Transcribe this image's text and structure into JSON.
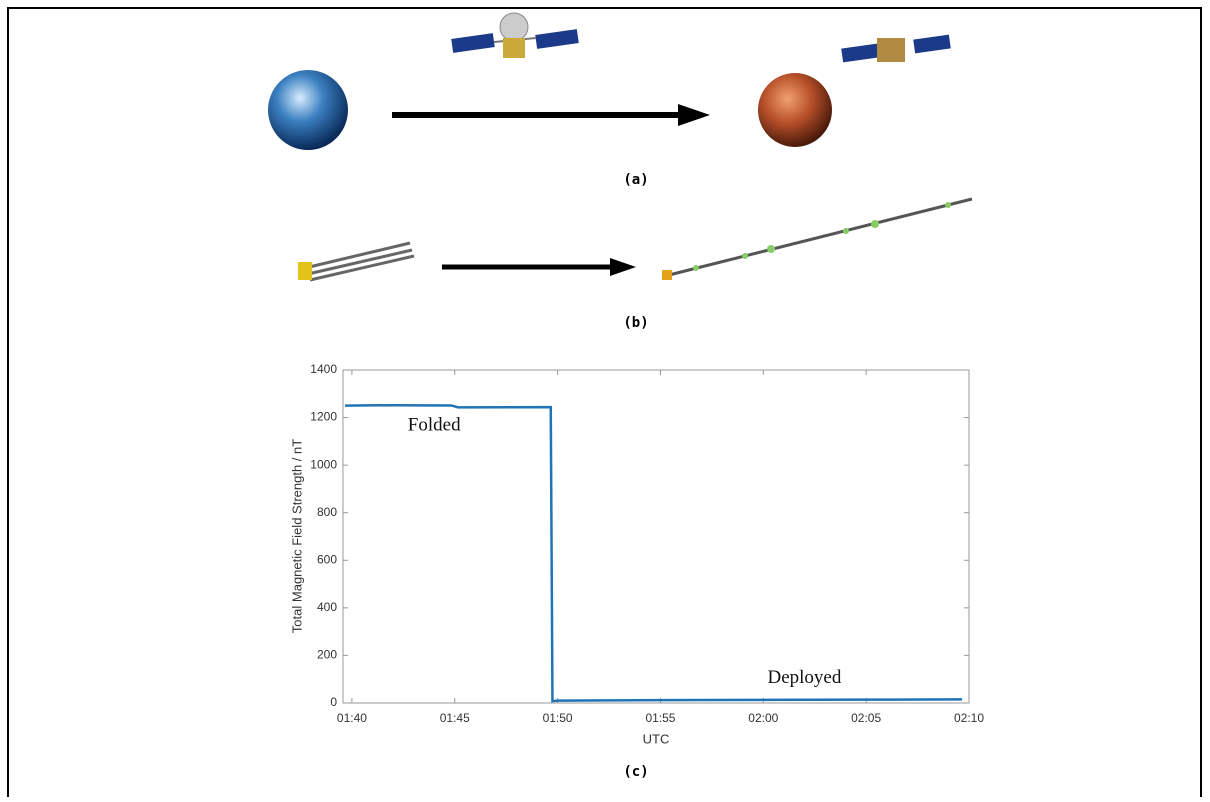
{
  "captions": {
    "a": "(a)",
    "b": "(b)",
    "c": "(c)"
  },
  "chart_data": {
    "type": "line",
    "y_label": "Total Magnetic Field Strength / nT",
    "x_label": "UTC",
    "annotations": [
      {
        "text": "Folded",
        "x": "01:44",
        "y": 1080
      },
      {
        "text": "Deployed",
        "x": "02:02",
        "y": 18
      }
    ],
    "x": [
      "01:39:40",
      "01:42:00",
      "01:44:50",
      "01:45:10",
      "01:49:40",
      "01:49:45",
      "01:50:00",
      "01:55:00",
      "02:00:00",
      "02:05:00",
      "02:09:40"
    ],
    "values": [
      1250,
      1252,
      1251,
      1243,
      1244,
      8,
      10,
      12,
      13,
      14,
      15
    ],
    "color": "#1f74b8",
    "xlim": [
      "01:39:34",
      "02:10:00"
    ],
    "xticks": [
      "01:40",
      "01:45",
      "01:50",
      "01:55",
      "02:00",
      "02:05",
      "02:10"
    ],
    "ylim": [
      0,
      1400
    ],
    "yticks": [
      0,
      200,
      400,
      600,
      800,
      1000,
      1200,
      1400
    ]
  }
}
